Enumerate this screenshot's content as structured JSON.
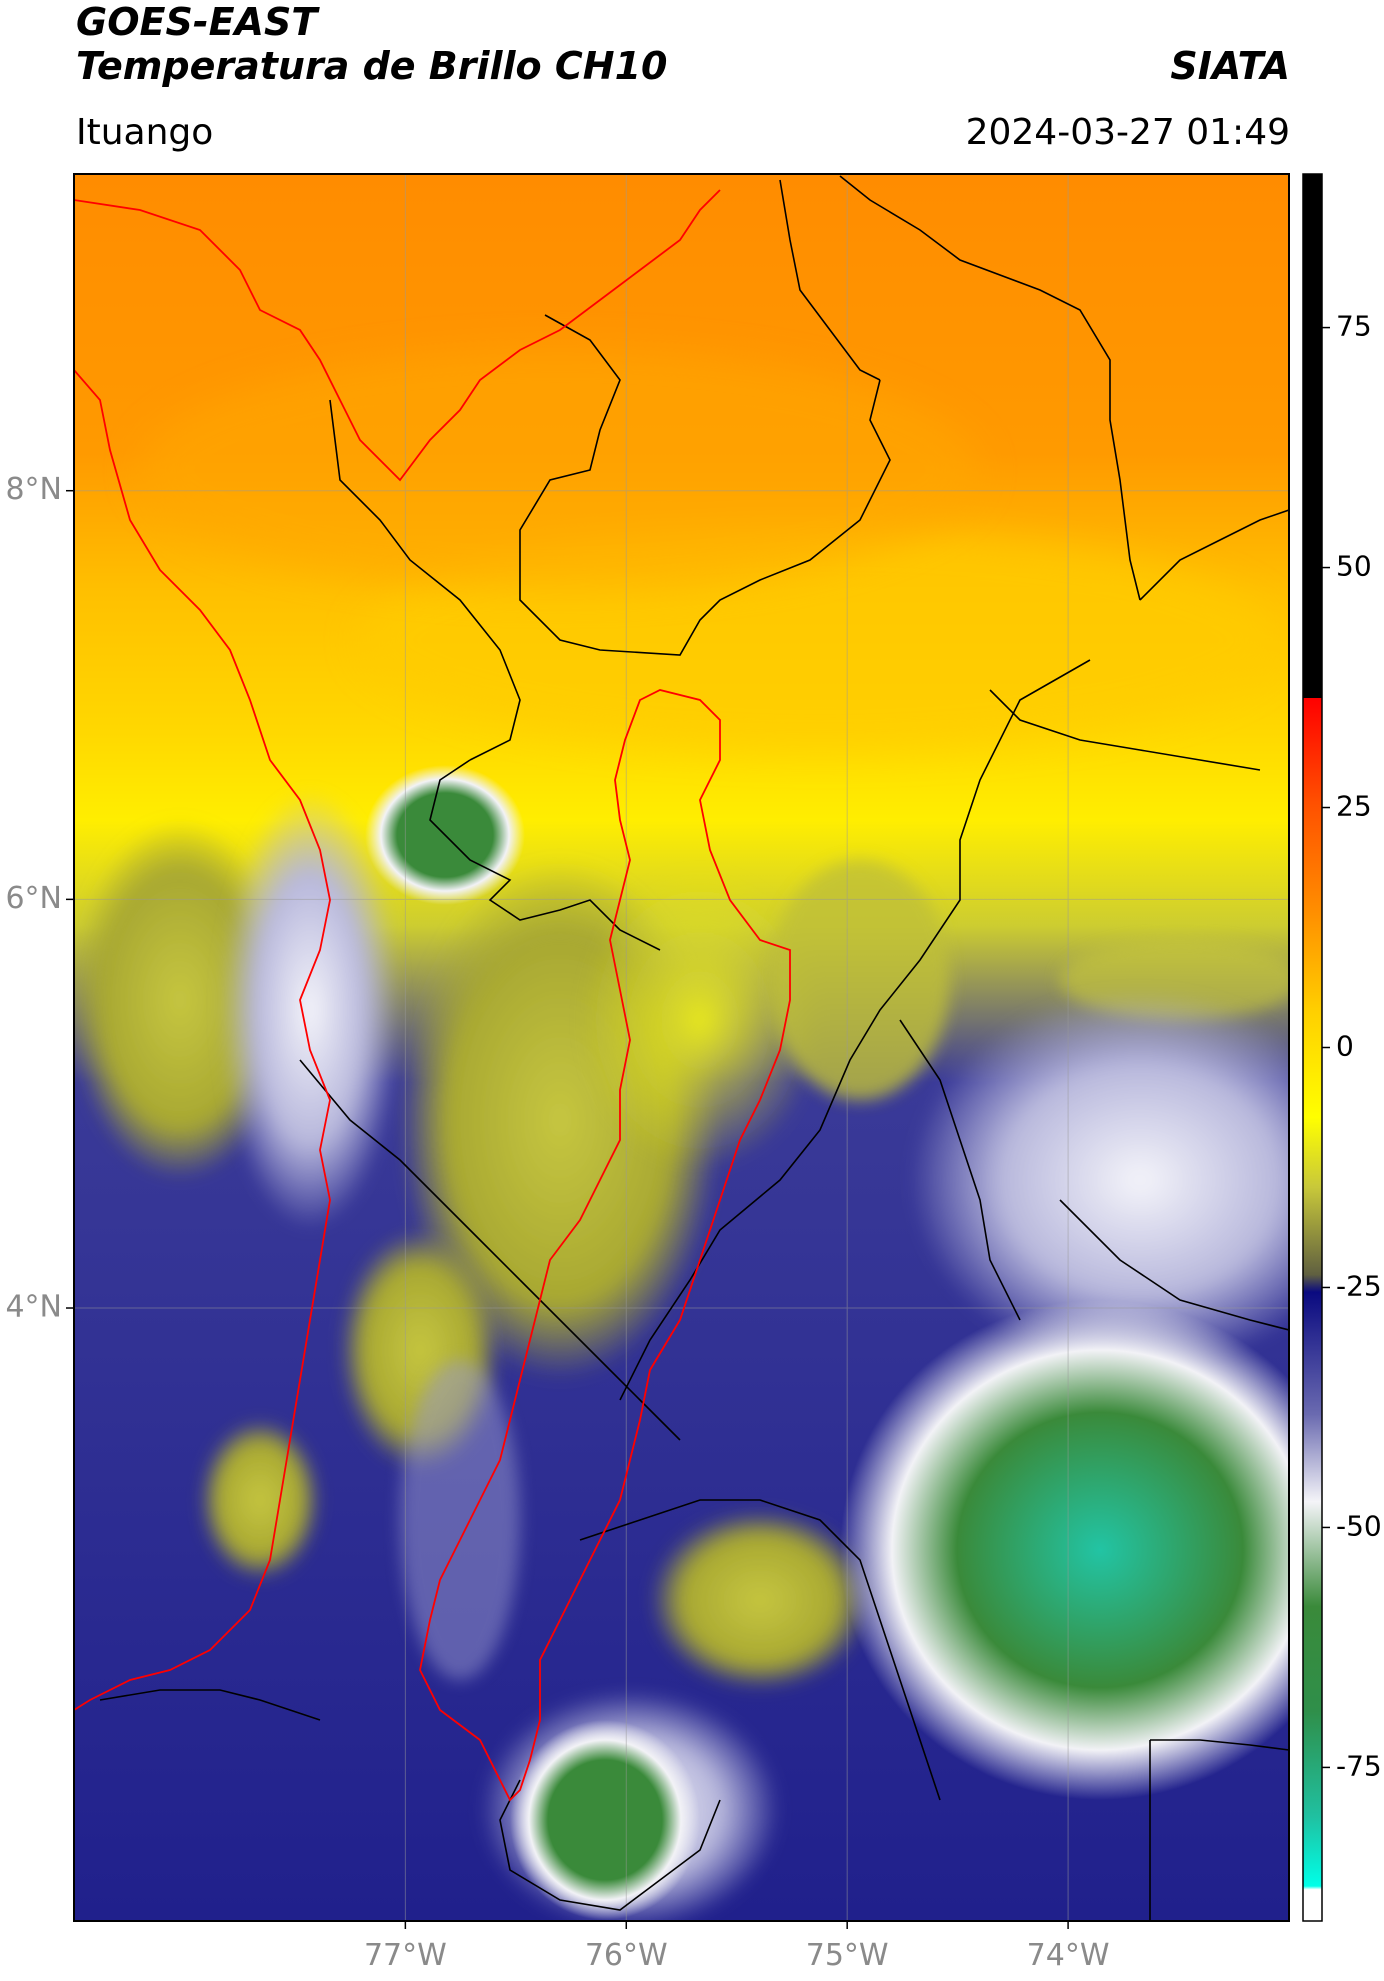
{
  "header": {
    "title_line1": "GOES-EAST",
    "title_line2": "Temperatura de Brillo CH10",
    "brand": "SIATA",
    "region": "Ituango",
    "datetime": "2024-03-27 01:49"
  },
  "map": {
    "extent_lon": [
      -78.5,
      -73.0
    ],
    "extent_lat": [
      1.0,
      9.55
    ],
    "lon_ticks": [
      {
        "value": -77,
        "label": "77°W"
      },
      {
        "value": -76,
        "label": "76°W"
      },
      {
        "value": -75,
        "label": "75°W"
      },
      {
        "value": -74,
        "label": "74°W"
      }
    ],
    "lat_ticks": [
      {
        "value": 8,
        "label": "8°N"
      },
      {
        "value": 6,
        "label": "6°N"
      },
      {
        "value": 4,
        "label": "4°N"
      }
    ],
    "colors": {
      "orange": "#ff8c00",
      "yellow": "#ffe600",
      "olive": "#b5b52a",
      "navy": "#1a1a8c",
      "white": "#f2f2f8",
      "green": "#3a8a3a",
      "teal": "#1fc0a0",
      "border_black": "#000000",
      "border_red": "#ff0000"
    }
  },
  "colorbar": {
    "range": [
      -91,
      91
    ],
    "ticks": [
      {
        "value": 75,
        "label": "75"
      },
      {
        "value": 50,
        "label": "50"
      },
      {
        "value": 25,
        "label": "25"
      },
      {
        "value": 0,
        "label": "0"
      },
      {
        "value": -25,
        "label": "-25"
      },
      {
        "value": -50,
        "label": "-50"
      },
      {
        "value": -75,
        "label": "-75"
      }
    ]
  }
}
